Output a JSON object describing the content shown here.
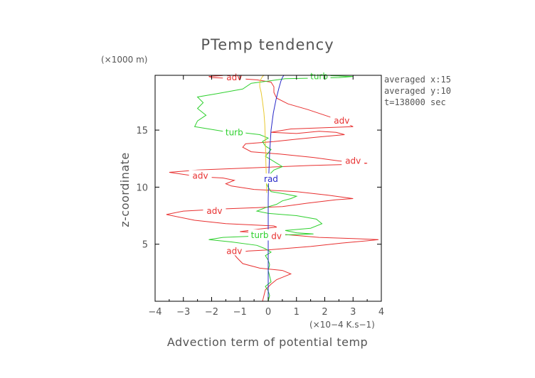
{
  "chart_data": {
    "type": "line",
    "title": "PTemp tendency",
    "xlabel": "Advection term of potential temp",
    "ylabel": "z-coordinate",
    "x_unit": "(×10−4 K.s−1)",
    "y_unit": "(×1000 m)",
    "xlim": [
      -4,
      4
    ],
    "ylim": [
      0,
      19.8
    ],
    "x_ticks": [
      -4,
      -3,
      -2,
      -1,
      0,
      1,
      2,
      3,
      4
    ],
    "x_tick_labels": [
      "−4",
      "−3",
      "−2",
      "−1",
      "0",
      "1",
      "2",
      "3",
      "4"
    ],
    "y_ticks": [
      5,
      10,
      15
    ],
    "y_tick_labels": [
      "5",
      "10",
      "15"
    ],
    "annotations": [
      "averaged  x:15",
      "averaged  y:10",
      "t=138000 sec"
    ],
    "grid": false,
    "series": [
      {
        "name": "adv",
        "color": "#e83030",
        "label_at": [
          [
            2.6,
            15.8
          ],
          [
            -2.4,
            11.0
          ],
          [
            -1.9,
            7.9
          ],
          [
            0.2,
            5.7
          ],
          [
            -1.2,
            4.4
          ],
          [
            -1.2,
            19.6
          ],
          [
            3.0,
            12.3
          ]
        ],
        "points": [
          [
            -0.2,
            0.0
          ],
          [
            -0.15,
            0.5
          ],
          [
            -0.1,
            1.0
          ],
          [
            0.1,
            1.5
          ],
          [
            0.3,
            1.9
          ],
          [
            0.6,
            2.2
          ],
          [
            0.8,
            2.4
          ],
          [
            0.5,
            2.7
          ],
          [
            -0.3,
            2.9
          ],
          [
            -0.9,
            3.3
          ],
          [
            -1.1,
            3.8
          ],
          [
            -1.2,
            4.1
          ],
          [
            -1.0,
            4.3
          ],
          [
            -0.7,
            4.4
          ],
          [
            0.0,
            4.5
          ],
          [
            1.5,
            4.8
          ],
          [
            2.6,
            5.1
          ],
          [
            3.5,
            5.3
          ],
          [
            3.9,
            5.4
          ],
          [
            3.0,
            5.5
          ],
          [
            1.8,
            5.6
          ],
          [
            0.8,
            5.8
          ],
          [
            -0.2,
            6.0
          ],
          [
            -1.0,
            6.1
          ],
          [
            -0.4,
            6.3
          ],
          [
            0.3,
            6.5
          ],
          [
            0.2,
            6.6
          ],
          [
            -1.5,
            6.8
          ],
          [
            -2.6,
            7.1
          ],
          [
            -3.6,
            7.6
          ],
          [
            -3.0,
            7.9
          ],
          [
            -1.5,
            8.1
          ],
          [
            -0.4,
            8.2
          ],
          [
            0.5,
            8.3
          ],
          [
            1.4,
            8.6
          ],
          [
            2.4,
            8.9
          ],
          [
            3.0,
            9.0
          ],
          [
            2.1,
            9.3
          ],
          [
            1.0,
            9.6
          ],
          [
            -0.5,
            9.8
          ],
          [
            -1.3,
            10.1
          ],
          [
            -1.5,
            10.3
          ],
          [
            -1.2,
            10.6
          ],
          [
            -1.6,
            10.8
          ],
          [
            -2.4,
            10.9
          ],
          [
            -3.5,
            11.3
          ],
          [
            -2.5,
            11.5
          ],
          [
            -0.5,
            11.7
          ],
          [
            1.5,
            11.9
          ],
          [
            3.0,
            12.0
          ],
          [
            3.5,
            12.1
          ],
          [
            2.5,
            12.3
          ],
          [
            1.6,
            12.6
          ],
          [
            0.4,
            12.9
          ],
          [
            -0.6,
            13.1
          ],
          [
            -0.9,
            13.5
          ],
          [
            -0.8,
            13.8
          ],
          [
            0.2,
            14.0
          ],
          [
            1.0,
            14.2
          ],
          [
            1.8,
            14.4
          ],
          [
            2.7,
            14.6
          ],
          [
            2.4,
            14.8
          ],
          [
            1.8,
            14.9
          ],
          [
            1.0,
            14.7
          ],
          [
            0.1,
            14.8
          ],
          [
            0.3,
            14.9
          ],
          [
            0.8,
            15.1
          ],
          [
            3.0,
            15.3
          ],
          [
            2.6,
            15.8
          ],
          [
            2.0,
            16.3
          ],
          [
            1.4,
            16.8
          ],
          [
            0.7,
            17.3
          ],
          [
            0.3,
            17.8
          ],
          [
            0.2,
            18.3
          ],
          [
            0.2,
            18.8
          ],
          [
            0.1,
            19.2
          ],
          [
            -0.4,
            19.4
          ],
          [
            -1.0,
            19.5
          ],
          [
            -2.0,
            19.6
          ],
          [
            -2.1,
            19.7
          ],
          [
            -1.5,
            19.8
          ],
          [
            0.0,
            19.8
          ],
          [
            0.7,
            19.8
          ]
        ]
      },
      {
        "name": "turb",
        "color": "#2fd02f",
        "label_at": [
          [
            -1.2,
            14.8
          ],
          [
            1.8,
            19.7
          ],
          [
            -0.3,
            5.8
          ]
        ],
        "points": [
          [
            0.0,
            0.0
          ],
          [
            0.05,
            0.5
          ],
          [
            0.0,
            0.9
          ],
          [
            -0.1,
            1.3
          ],
          [
            0.1,
            1.7
          ],
          [
            0.05,
            2.2
          ],
          [
            0.0,
            2.7
          ],
          [
            0.05,
            3.2
          ],
          [
            0.0,
            3.6
          ],
          [
            -0.1,
            4.0
          ],
          [
            0.1,
            4.3
          ],
          [
            -0.1,
            4.6
          ],
          [
            -0.4,
            4.9
          ],
          [
            -1.3,
            5.2
          ],
          [
            -2.1,
            5.4
          ],
          [
            -1.6,
            5.6
          ],
          [
            -0.6,
            5.7
          ],
          [
            0.5,
            5.8
          ],
          [
            1.6,
            5.9
          ],
          [
            1.0,
            6.0
          ],
          [
            0.6,
            6.2
          ],
          [
            1.5,
            6.4
          ],
          [
            1.9,
            6.8
          ],
          [
            1.7,
            7.2
          ],
          [
            1.0,
            7.5
          ],
          [
            0.0,
            7.7
          ],
          [
            -0.4,
            7.9
          ],
          [
            -0.1,
            8.2
          ],
          [
            0.3,
            8.5
          ],
          [
            0.5,
            8.8
          ],
          [
            0.8,
            9.0
          ],
          [
            1.0,
            9.2
          ],
          [
            0.6,
            9.4
          ],
          [
            0.1,
            9.6
          ],
          [
            0.0,
            10.0
          ],
          [
            -0.1,
            10.5
          ],
          [
            0.0,
            11.0
          ],
          [
            0.2,
            11.5
          ],
          [
            0.5,
            11.8
          ],
          [
            0.3,
            12.1
          ],
          [
            0.1,
            12.4
          ],
          [
            -0.1,
            12.7
          ],
          [
            0.0,
            13.0
          ],
          [
            0.1,
            13.3
          ],
          [
            -0.1,
            13.6
          ],
          [
            -0.2,
            14.0
          ],
          [
            0.0,
            14.3
          ],
          [
            -0.3,
            14.6
          ],
          [
            -1.0,
            14.8
          ],
          [
            -1.6,
            14.9
          ],
          [
            -2.6,
            15.3
          ],
          [
            -2.5,
            15.8
          ],
          [
            -2.2,
            16.3
          ],
          [
            -2.5,
            16.9
          ],
          [
            -2.3,
            17.4
          ],
          [
            -2.5,
            17.9
          ],
          [
            -1.8,
            18.2
          ],
          [
            -0.9,
            18.6
          ],
          [
            -0.6,
            19.1
          ],
          [
            0.6,
            19.5
          ],
          [
            2.5,
            19.6
          ],
          [
            3.0,
            19.7
          ],
          [
            1.8,
            19.8
          ],
          [
            0.5,
            19.8
          ]
        ]
      },
      {
        "name": "rad",
        "color": "#2828c8",
        "label_at": [
          [
            0.1,
            10.7
          ]
        ],
        "points": [
          [
            0.0,
            0.0
          ],
          [
            0.0,
            3.0
          ],
          [
            0.0,
            6.0
          ],
          [
            0.0,
            9.0
          ],
          [
            0.02,
            11.0
          ],
          [
            0.05,
            13.0
          ],
          [
            0.1,
            15.0
          ],
          [
            0.18,
            16.5
          ],
          [
            0.28,
            17.7
          ],
          [
            0.38,
            18.7
          ],
          [
            0.45,
            19.3
          ],
          [
            0.5,
            19.6
          ],
          [
            0.55,
            19.8
          ]
        ]
      },
      {
        "name": "",
        "color": "#e8c830",
        "label_at": [],
        "points": [
          [
            -0.05,
            9.5
          ],
          [
            -0.08,
            12.0
          ],
          [
            -0.1,
            14.0
          ],
          [
            -0.12,
            15.5
          ],
          [
            -0.15,
            16.5
          ],
          [
            -0.2,
            17.5
          ],
          [
            -0.25,
            18.3
          ],
          [
            -0.3,
            18.8
          ],
          [
            -0.3,
            19.2
          ],
          [
            -0.25,
            19.5
          ],
          [
            -0.2,
            19.7
          ],
          [
            -0.15,
            19.8
          ]
        ]
      }
    ]
  }
}
